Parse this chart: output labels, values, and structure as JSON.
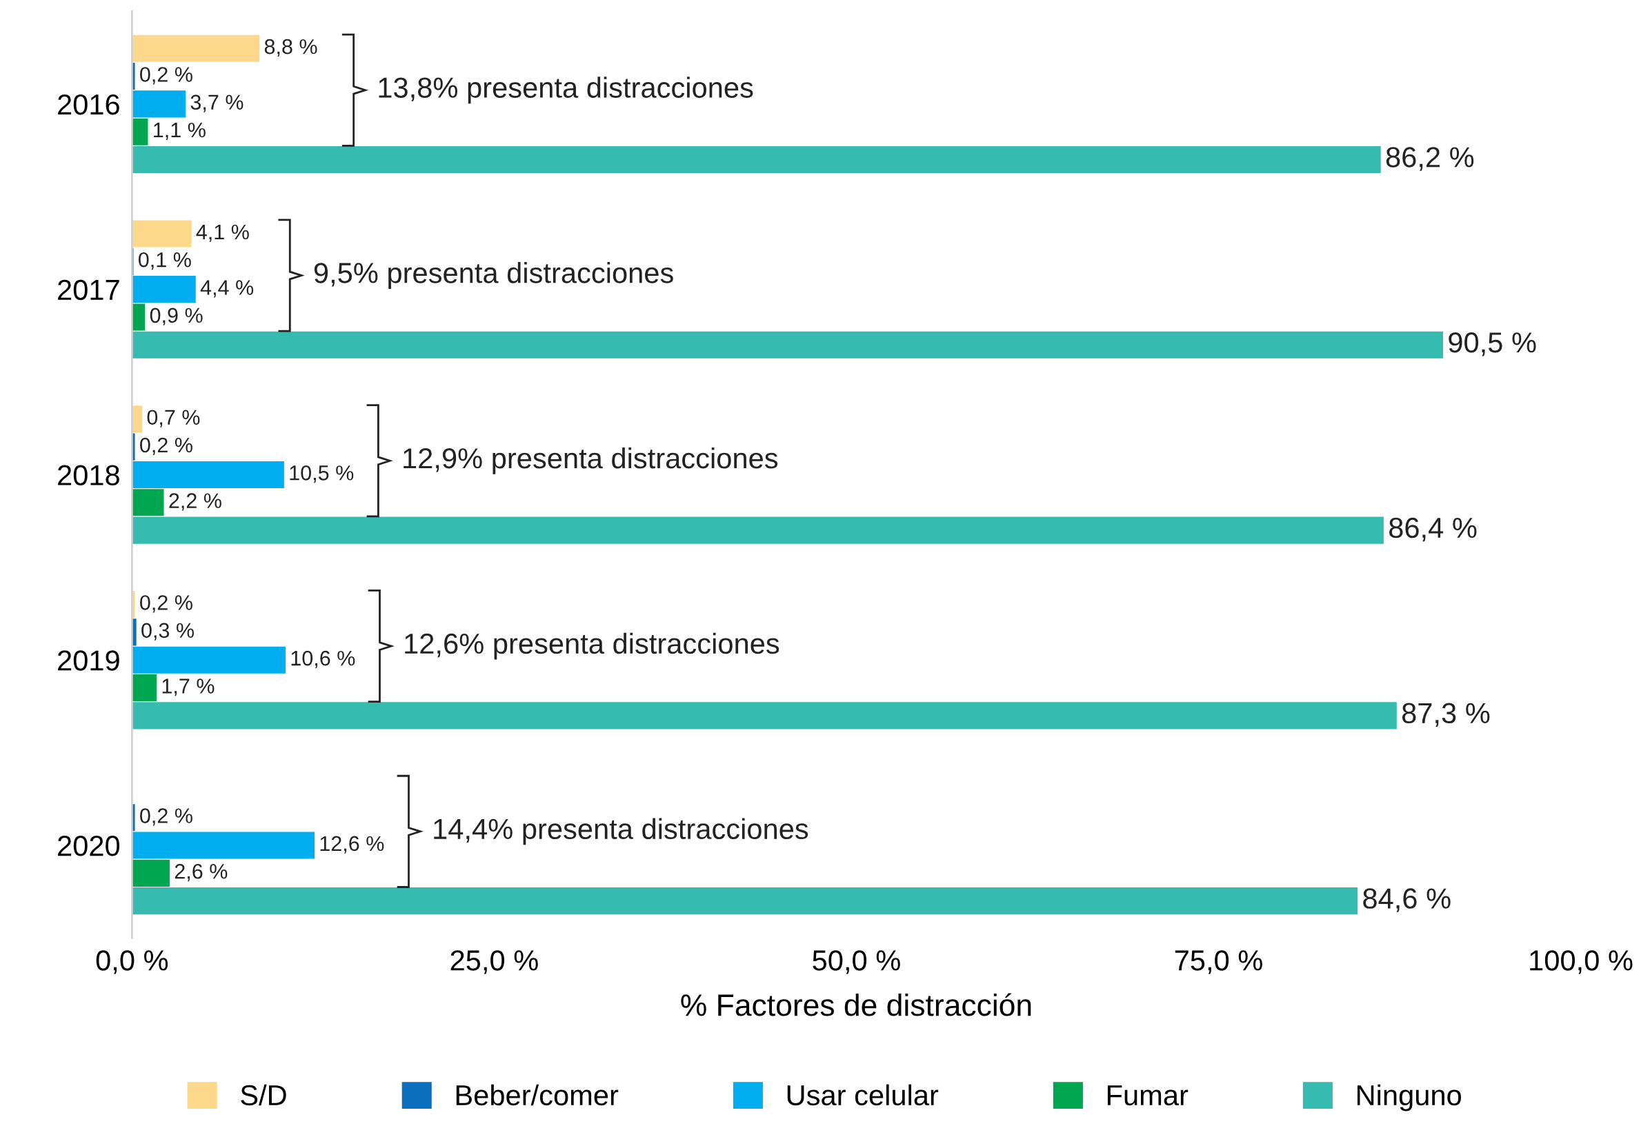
{
  "chart_data": {
    "type": "bar",
    "orientation": "horizontal",
    "xlabel": "% Factores de distracción",
    "categories": [
      "2016",
      "2017",
      "2018",
      "2019",
      "2020"
    ],
    "series": [
      {
        "name": "S/D",
        "color": "#fdd78a",
        "values": [
          8.8,
          4.1,
          0.7,
          0.2,
          null
        ],
        "value_labels": [
          "8,8 %",
          "4,1 %",
          "0,7 %",
          "0,2 %",
          null
        ]
      },
      {
        "name": "Beber/comer",
        "color": "#0a6ebd",
        "values": [
          0.2,
          0.1,
          0.2,
          0.3,
          0.2
        ],
        "value_labels": [
          "0,2 %",
          "0,1 %",
          "0,2 %",
          "0,3 %",
          "0,2 %"
        ]
      },
      {
        "name": "Usar celular",
        "color": "#00aeef",
        "values": [
          3.7,
          4.4,
          10.5,
          10.6,
          12.6
        ],
        "value_labels": [
          "3,7 %",
          "4,4 %",
          "10,5 %",
          "10,6 %",
          "12,6 %"
        ]
      },
      {
        "name": "Fumar",
        "color": "#00a650",
        "values": [
          1.1,
          0.9,
          2.2,
          1.7,
          2.6
        ],
        "value_labels": [
          "1,1 %",
          "0,9 %",
          "2,2 %",
          "1,7 %",
          "2,6 %"
        ]
      },
      {
        "name": "Ninguno",
        "color": "#36bbb0",
        "values": [
          86.2,
          90.5,
          86.4,
          87.3,
          84.6
        ],
        "value_labels": [
          "86,2 %",
          "90,5 %",
          "86,4 %",
          "87,3 %",
          "84,6 %"
        ]
      }
    ],
    "annotations": [
      "13,8% presenta distracciones",
      "9,5% presenta distracciones",
      "12,9% presenta distracciones",
      "12,6% presenta distracciones",
      "14,4% presenta distracciones"
    ],
    "xlim": [
      0,
      100
    ],
    "xticks": [
      {
        "value": 0,
        "label": "0,0 %"
      },
      {
        "value": 25,
        "label": "25,0 %"
      },
      {
        "value": 50,
        "label": "50,0 %"
      },
      {
        "value": 75,
        "label": "75,0 %"
      },
      {
        "value": 100,
        "label": "100,0 %"
      }
    ],
    "grid": false,
    "legend": "bottom"
  }
}
